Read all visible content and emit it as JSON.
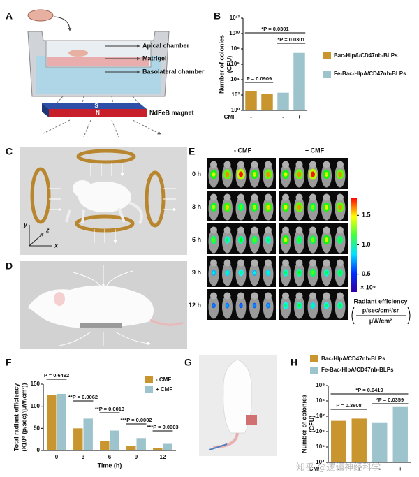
{
  "panel_labels": [
    "A",
    "B",
    "C",
    "D",
    "E",
    "F",
    "G",
    "H"
  ],
  "panel_a": {
    "apical": "Apical chamber",
    "matrigel": "Matrigel",
    "basolateral": "Basolateral chamber",
    "magnet": "NdFeB magnet",
    "south": "S",
    "north": "N"
  },
  "panel_c": {
    "axes": [
      "y",
      "z",
      "x"
    ]
  },
  "panel_e": {
    "columns": [
      "- CMF",
      "+ CMF"
    ],
    "rows": [
      "0 h",
      "3 h",
      "6 h",
      "9 h",
      "12 h"
    ],
    "colorbar": {
      "clim": [
        0.2,
        1.8
      ],
      "ticks": [
        1.5,
        {
          "value": 1,
          "label": "1.0"
        },
        0.5
      ],
      "multiplier": "× 10⁹",
      "label": "Radiant efficiency",
      "unit_numerator": "p/sec/cm²/sr",
      "unit_denominator": "μW/cm²"
    }
  },
  "watermark": "知乎 @逻辑神经科学",
  "chart_data": [
    {
      "type": "bar",
      "log_scale": true,
      "legend": "right",
      "ylabel": [
        "Number of colonies",
        "(CFU)"
      ],
      "xlabel": "CMF",
      "categories": [
        "-",
        "+",
        "-",
        "+"
      ],
      "series": [
        {
          "name": "Bac-HlpA/CD47nb-BLPs",
          "color": "#c9952f",
          "values": [
            300,
            150,
            null,
            null
          ]
        },
        {
          "name": "Fe-Bac-HlpA/CD47nb-BLPs",
          "color": "#9dc4cd",
          "values": [
            null,
            null,
            200,
            30000000
          ]
        }
      ],
      "ylim": [
        1,
        1000000000000
      ],
      "yticks": [
        {
          "value": 1,
          "label": "10⁰"
        },
        {
          "value": 100,
          "label": "10²"
        },
        {
          "value": 10000,
          "label": "10⁴"
        },
        {
          "value": 1000000,
          "label": "10⁶"
        },
        {
          "value": 100000000,
          "label": "10⁸"
        },
        {
          "value": 10000000000,
          "label": "10¹⁰"
        },
        {
          "value": 1000000000000,
          "label": "10¹²"
        }
      ],
      "annotations": [
        "P = 0.0909",
        "*P = 0.0301",
        "*P = 0.0301"
      ]
    },
    {
      "type": "bar",
      "log_scale": false,
      "legend": "upper right",
      "ylabel": [
        "Total radiant efficiency",
        "(×10⁹ (p/sec)/(μW/cm²))"
      ],
      "xlabel": "Time (h)",
      "categories": [
        "0",
        "3",
        "6",
        "9",
        "12"
      ],
      "series": [
        {
          "name": "- CMF",
          "color": "#c9952f",
          "values": [
            125,
            50,
            22,
            10,
            5
          ]
        },
        {
          "name": "+ CMF",
          "color": "#9dc4cd",
          "values": [
            128,
            72,
            45,
            28,
            15
          ]
        }
      ],
      "ylim": [
        0,
        150
      ],
      "yticks": [
        0,
        50,
        100,
        150
      ],
      "annotations": [
        "P = 0.6492",
        "**P = 0.0062",
        "**P = 0.0013",
        "***P = 0.0002",
        "***P = 0.0003"
      ]
    },
    {
      "type": "bar",
      "log_scale": true,
      "legend": "top",
      "ylabel": [
        "Number of colonies",
        "(CFU)"
      ],
      "xlabel": "CMF",
      "categories": [
        "-",
        "+",
        "-",
        "+"
      ],
      "series": [
        {
          "name": "Bac-HlpA/CD47nb-BLPs",
          "color": "#c9952f",
          "values": [
            5000000,
            7000000,
            null,
            null
          ]
        },
        {
          "name": "Fe-Bac-HlpA/CD47nb-BLPs",
          "color": "#9dc4cd",
          "values": [
            null,
            null,
            4000000,
            40000000
          ]
        }
      ],
      "ylim": [
        10000,
        1000000000
      ],
      "yticks": [
        {
          "value": 10000,
          "label": "10⁴"
        },
        {
          "value": 100000,
          "label": "10⁵"
        },
        {
          "value": 1000000,
          "label": "10⁶"
        },
        {
          "value": 10000000,
          "label": "10⁷"
        },
        {
          "value": 100000000,
          "label": "10⁸"
        },
        {
          "value": 1000000000,
          "label": "10⁹"
        }
      ],
      "annotations": [
        "P = 0.3808",
        "*P = 0.0419",
        "*P = 0.0359"
      ]
    }
  ]
}
